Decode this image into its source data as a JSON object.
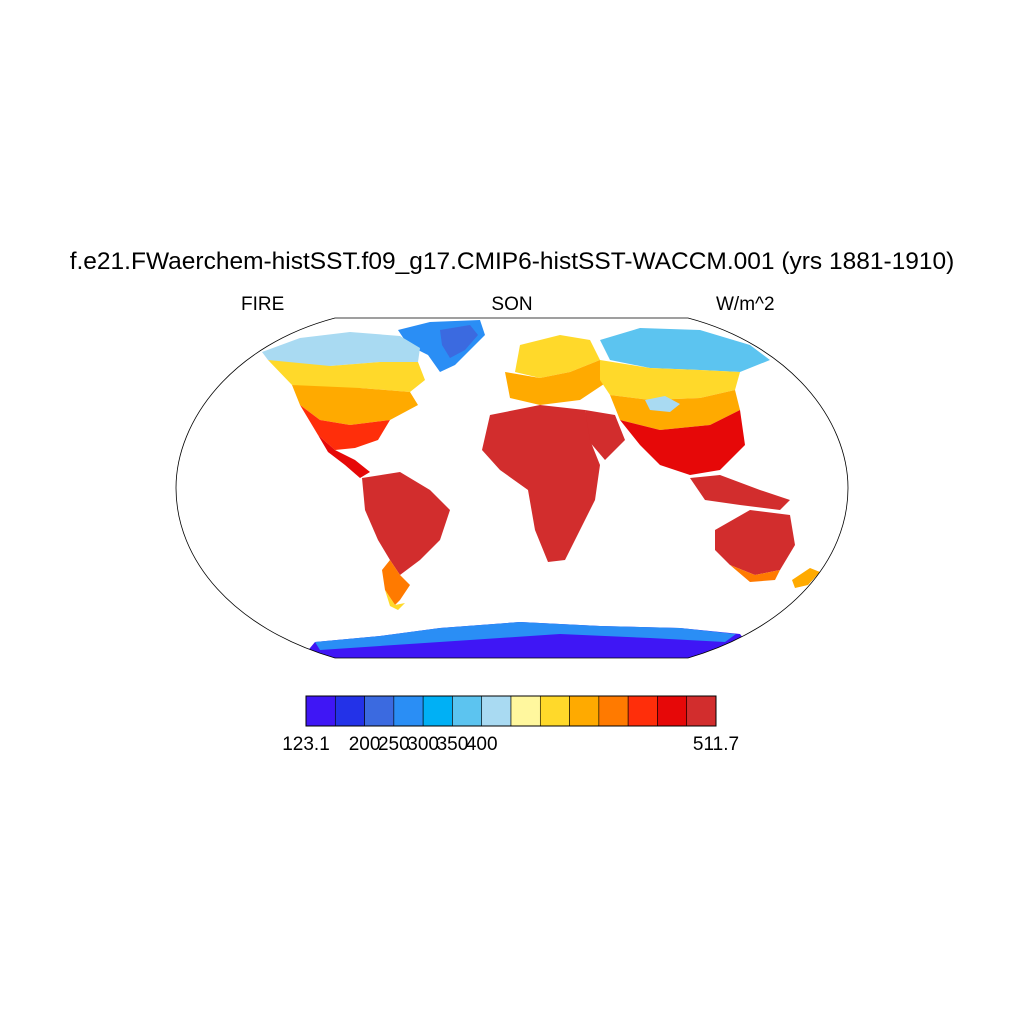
{
  "header": {
    "title": "f.e21.FWaerchem-histSST.f09_g17.CMIP6-histSST-WACCM.001 (yrs 1881-1910)",
    "variable": "FIRE",
    "season": "SON",
    "units": "W/m^2"
  },
  "colorbar": {
    "colors": [
      "#3f16f5",
      "#2332e8",
      "#3b6ae0",
      "#2a8ef5",
      "#00b0f5",
      "#5cc4f0",
      "#a9daf2",
      "#fff79e",
      "#ffd92a",
      "#ffaa00",
      "#ff7a00",
      "#ff2e0a",
      "#e60808",
      "#d22d2d"
    ],
    "labels": [
      {
        "text": "123.1",
        "boundary": 0
      },
      {
        "text": "200",
        "boundary": 2
      },
      {
        "text": "250",
        "boundary": 3
      },
      {
        "text": "300",
        "boundary": 4
      },
      {
        "text": "350",
        "boundary": 5
      },
      {
        "text": "400",
        "boundary": 6
      },
      {
        "text": "511.7",
        "boundary": 14
      }
    ]
  }
}
